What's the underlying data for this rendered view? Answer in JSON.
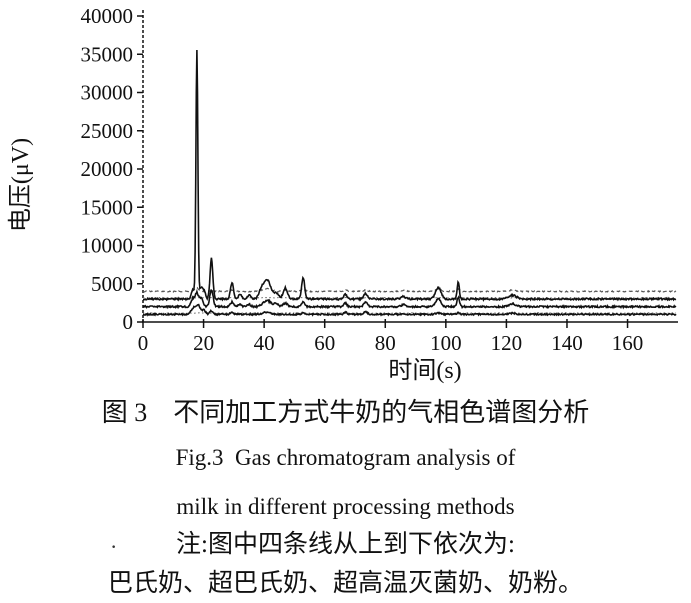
{
  "figure": {
    "caption_cn": "图 3　不同加工方式牛奶的气相色谱图分析",
    "caption_en_line1": "Fig.3  Gas chromatogram analysis of",
    "caption_en_line2": "milk in different processing methods",
    "note_line1": "注:图中四条线从上到下依次为:",
    "note_line2": "巴氏奶、超巴氏奶、超高温灭菌奶、奶粉。",
    "note_mark": "·"
  },
  "colors": {
    "ink": "#111111",
    "dashed_trace": "#555555",
    "background": "#ffffff"
  },
  "chart_data": {
    "type": "line",
    "title": "",
    "xlabel": "时间(s)",
    "ylabel": "电压(μV)",
    "x_ticks": [
      0,
      20,
      40,
      60,
      80,
      100,
      120,
      140,
      160
    ],
    "y_ticks": [
      0,
      5000,
      10000,
      15000,
      20000,
      25000,
      30000,
      35000,
      40000
    ],
    "x_range": [
      0,
      176
    ],
    "y_range": [
      0,
      40000
    ],
    "grid": false,
    "legend_position": "none",
    "series_order_note": "four lines top to bottom: 巴氏奶, 超巴氏奶, 超高温灭菌奶, 奶粉",
    "main_peak": {
      "time_s": 17.8,
      "voltage_uV": 35500
    },
    "series": [
      {
        "id": "pasteurized-milk",
        "name": "巴氏奶",
        "baseline": 4000,
        "style": "dashed",
        "noise": 70,
        "dotted_companion": false,
        "peaks": [
          [
            17.8,
            400,
            0.8
          ],
          [
            22.6,
            150,
            0.6
          ],
          [
            29.4,
            180,
            0.6
          ],
          [
            41,
            350,
            1.5
          ],
          [
            47,
            220,
            0.8
          ],
          [
            52.9,
            320,
            0.7
          ],
          [
            66.8,
            150,
            0.7
          ],
          [
            73.5,
            170,
            0.7
          ],
          [
            86,
            130,
            0.8
          ],
          [
            97.5,
            280,
            0.9
          ],
          [
            104.1,
            300,
            0.5
          ],
          [
            122,
            160,
            1.2
          ]
        ]
      },
      {
        "id": "ultra-pasteurized-milk",
        "name": "超巴氏奶",
        "baseline": 3000,
        "style": "solid",
        "noise": 110,
        "dotted_companion": true,
        "peaks": [
          [
            16.5,
            1200,
            0.5
          ],
          [
            17.8,
            32500,
            0.32
          ],
          [
            19.2,
            1500,
            0.6
          ],
          [
            20.3,
            800,
            0.4
          ],
          [
            22.6,
            5300,
            0.45
          ],
          [
            29.4,
            2100,
            0.5
          ],
          [
            32,
            700,
            0.5
          ],
          [
            35,
            500,
            0.6
          ],
          [
            39,
            900,
            0.8
          ],
          [
            41,
            2500,
            1.2
          ],
          [
            44,
            700,
            0.8
          ],
          [
            47,
            1450,
            0.7
          ],
          [
            52.9,
            2800,
            0.5
          ],
          [
            66.8,
            600,
            0.5
          ],
          [
            73.5,
            700,
            0.6
          ],
          [
            86,
            300,
            0.8
          ],
          [
            97.5,
            1500,
            0.9
          ],
          [
            104.1,
            2200,
            0.35
          ],
          [
            122,
            500,
            1.3
          ]
        ]
      },
      {
        "id": "uht-milk",
        "name": "超高温灭菌奶",
        "baseline": 2000,
        "style": "solid",
        "noise": 110,
        "dotted_companion": false,
        "peaks": [
          [
            16.5,
            1100,
            0.6
          ],
          [
            17.8,
            1700,
            0.5
          ],
          [
            19.2,
            1200,
            0.6
          ],
          [
            22.6,
            2200,
            0.55
          ],
          [
            29.4,
            600,
            0.5
          ],
          [
            32,
            350,
            0.5
          ],
          [
            35,
            300,
            0.6
          ],
          [
            41,
            800,
            1.3
          ],
          [
            44,
            400,
            0.7
          ],
          [
            47,
            450,
            0.7
          ],
          [
            52.9,
            600,
            0.5
          ],
          [
            66.8,
            500,
            0.5
          ],
          [
            73.5,
            550,
            0.6
          ],
          [
            86,
            250,
            0.8
          ],
          [
            97.5,
            1100,
            0.8
          ],
          [
            104.1,
            1200,
            0.4
          ],
          [
            122,
            400,
            1.1
          ]
        ]
      },
      {
        "id": "milk-powder",
        "name": "奶粉",
        "baseline": 1000,
        "style": "solid",
        "noise": 90,
        "dotted_companion": true,
        "peaks": [
          [
            16.8,
            900,
            0.8
          ],
          [
            18.3,
            1100,
            0.6
          ],
          [
            20,
            600,
            0.6
          ],
          [
            22.6,
            450,
            0.5
          ],
          [
            29.4,
            250,
            0.5
          ],
          [
            41,
            300,
            1.2
          ],
          [
            52.9,
            250,
            0.5
          ],
          [
            66.8,
            300,
            0.5
          ],
          [
            73.5,
            350,
            0.6
          ],
          [
            97.5,
            200,
            0.8
          ],
          [
            104.1,
            230,
            0.4
          ],
          [
            122,
            150,
            1.1
          ]
        ]
      }
    ]
  }
}
